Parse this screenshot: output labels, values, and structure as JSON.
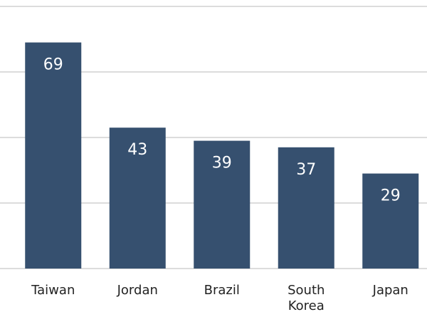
{
  "chart_data": {
    "type": "bar",
    "categories": [
      "Taiwan",
      "Jordan",
      "Brazil",
      "South Korea",
      "Japan"
    ],
    "category_lines": [
      [
        "Taiwan"
      ],
      [
        "Jordan"
      ],
      [
        "Brazil"
      ],
      [
        "South",
        "Korea"
      ],
      [
        "Japan"
      ]
    ],
    "values": [
      69,
      43,
      39,
      37,
      29
    ],
    "data_labels": [
      "69",
      "43",
      "39",
      "37",
      "29"
    ],
    "bar_color": "#36506f",
    "ylim": [
      0,
      80
    ],
    "grid": true,
    "title": "",
    "xlabel": "",
    "ylabel": ""
  }
}
